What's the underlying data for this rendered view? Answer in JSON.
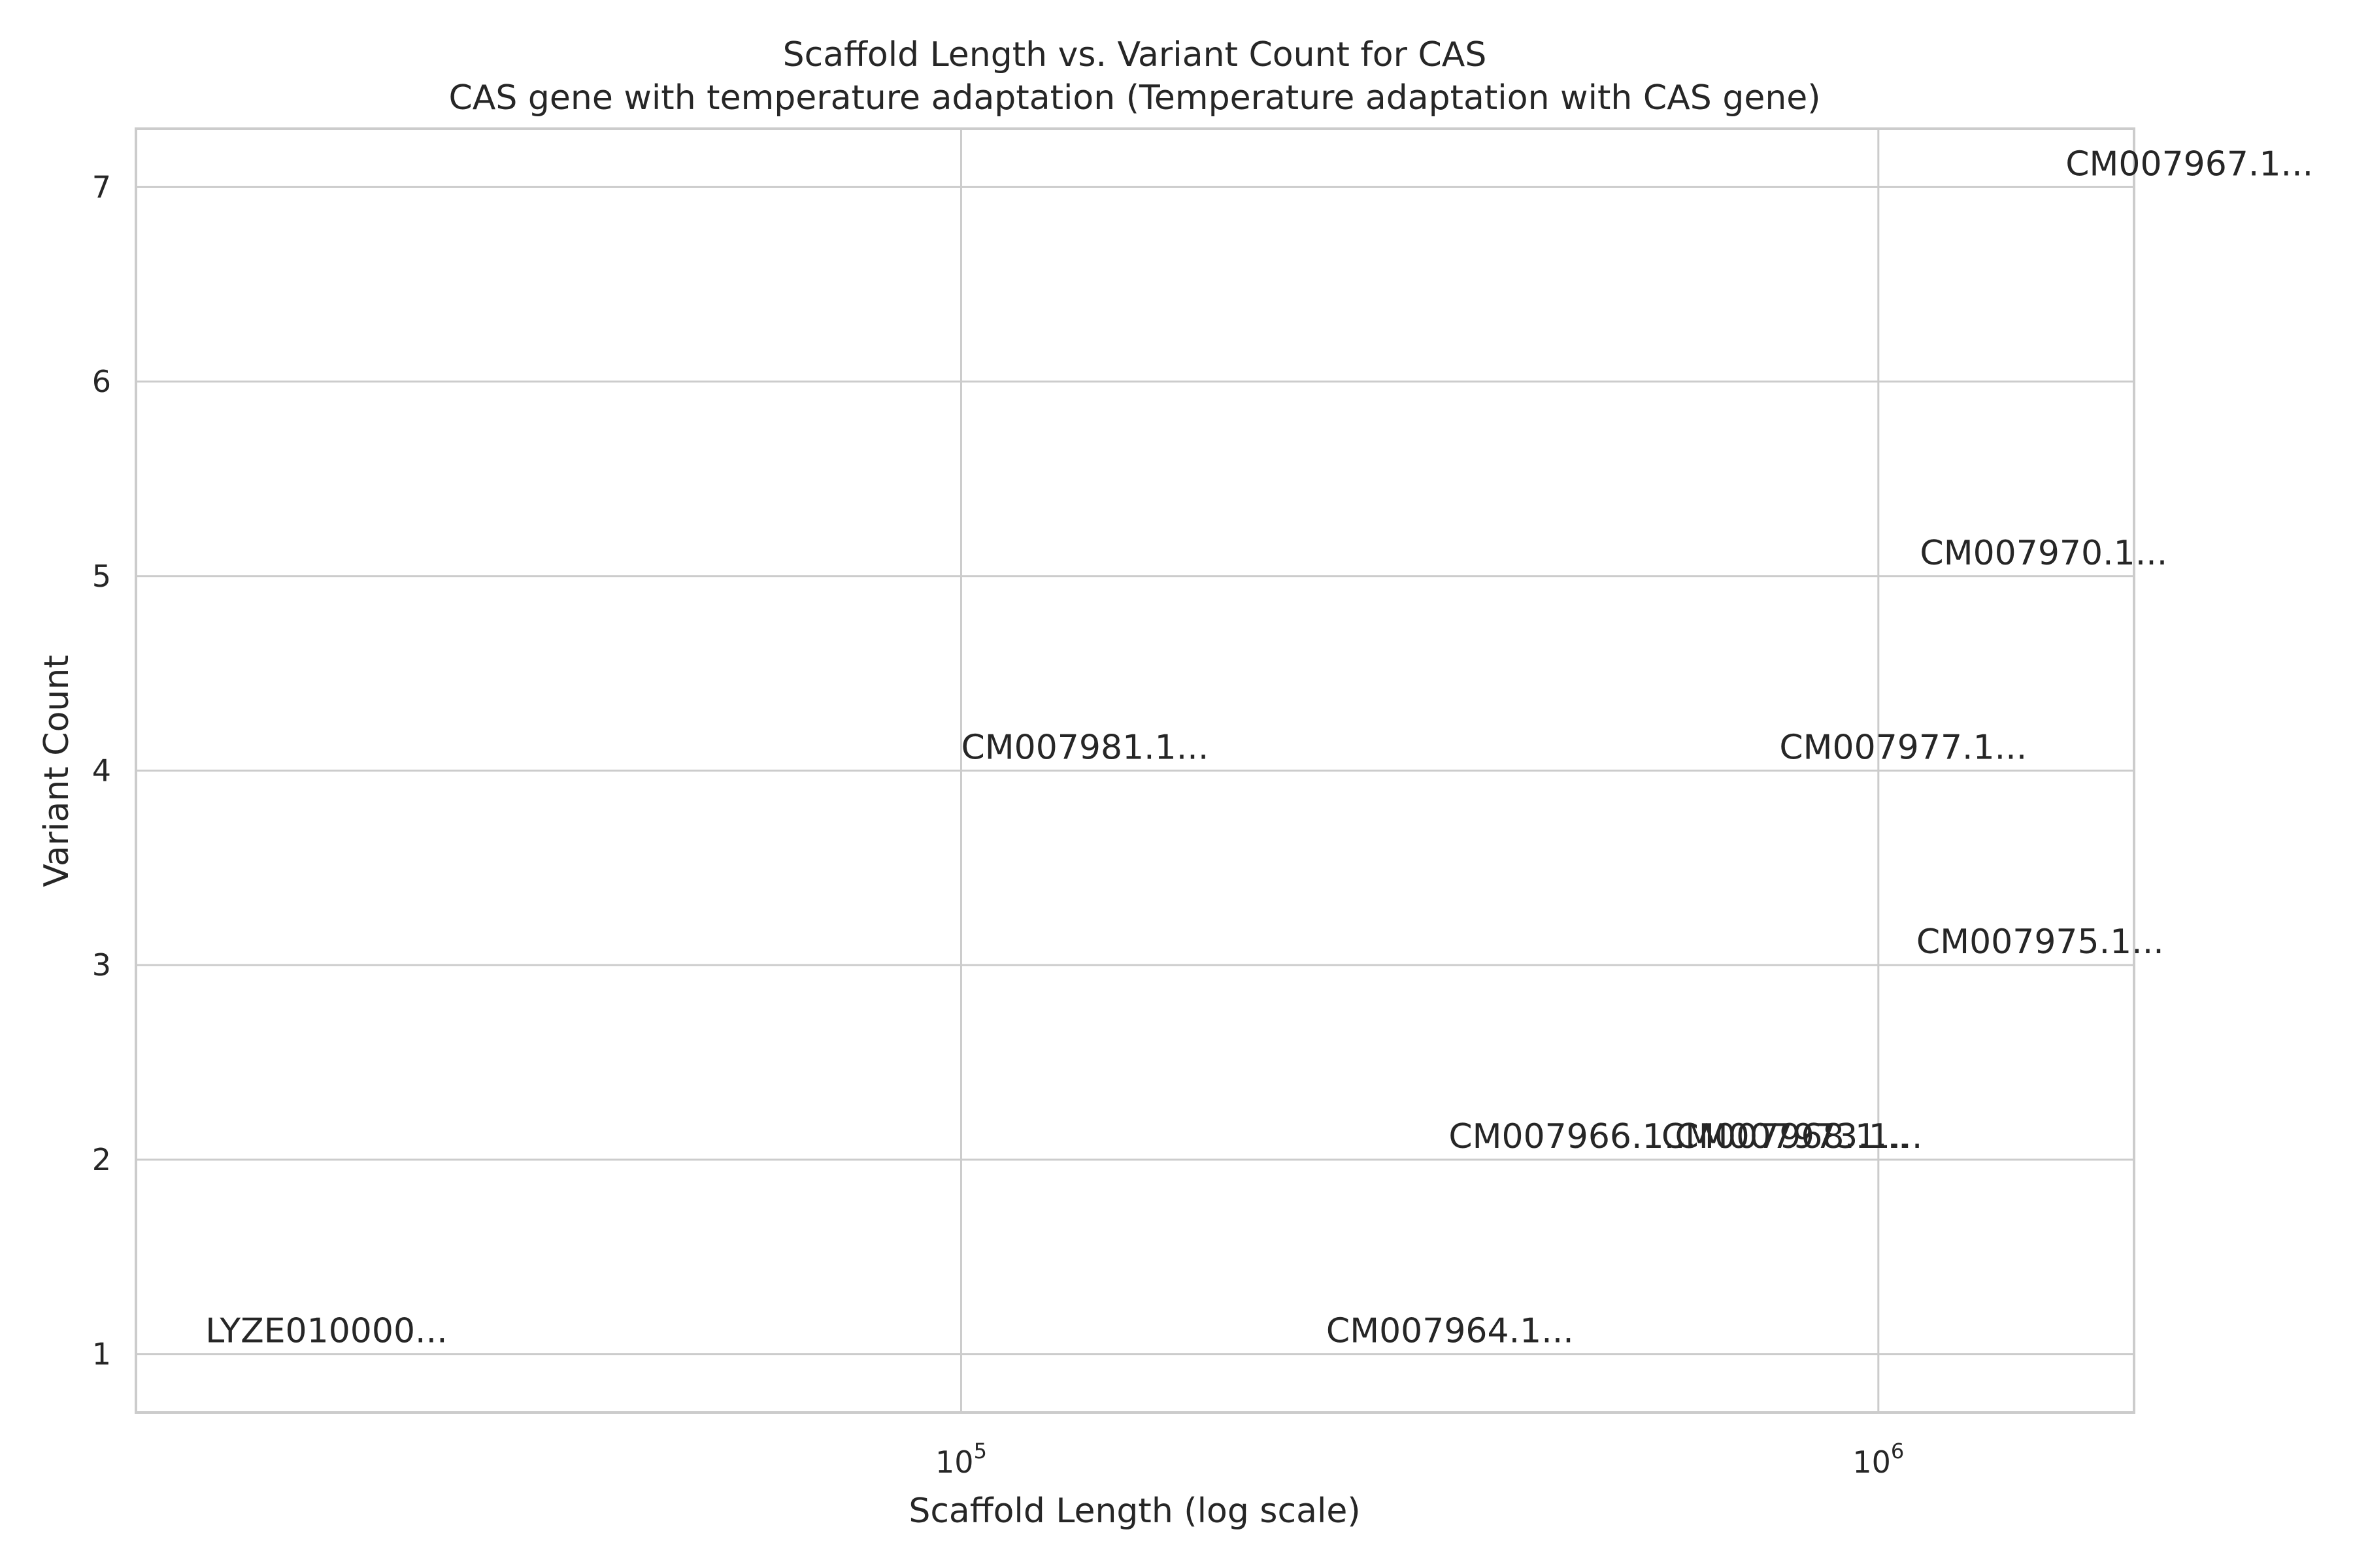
{
  "chart_data": {
    "type": "scatter",
    "title": "Scaffold Length vs. Variant Count for CAS",
    "subtitle": "CAS gene with temperature adaptation (Temperature adaptation with CAS gene)",
    "xlabel": "Scaffold Length (log scale)",
    "ylabel": "Variant Count",
    "xscale": "log",
    "xlim": [
      12600,
      1900000
    ],
    "ylim": [
      0.7,
      7.3
    ],
    "grid": true,
    "x_ticks": [
      {
        "value": 100000,
        "base": "10",
        "exp": "5"
      },
      {
        "value": 1000000,
        "base": "10",
        "exp": "6"
      }
    ],
    "y_ticks": [
      1,
      2,
      3,
      4,
      5,
      6,
      7
    ],
    "points": [
      {
        "x": 15000,
        "y": 1,
        "label": "LYZE010000..."
      },
      {
        "x": 250000,
        "y": 1,
        "label": "CM007964.1..."
      },
      {
        "x": 100000,
        "y": 4,
        "label": "CM007981.1..."
      },
      {
        "x": 340000,
        "y": 2,
        "label": "CM007966.1..."
      },
      {
        "x": 580000,
        "y": 2,
        "label": "CM007968.1..."
      },
      {
        "x": 600000,
        "y": 2,
        "label": "CM007973.1..."
      },
      {
        "x": 780000,
        "y": 4,
        "label": "CM007977.1..."
      },
      {
        "x": 1100000,
        "y": 3,
        "label": "CM007975.1..."
      },
      {
        "x": 1110000,
        "y": 5,
        "label": "CM007970.1..."
      },
      {
        "x": 1600000,
        "y": 7,
        "label": "CM007967.1..."
      }
    ]
  }
}
